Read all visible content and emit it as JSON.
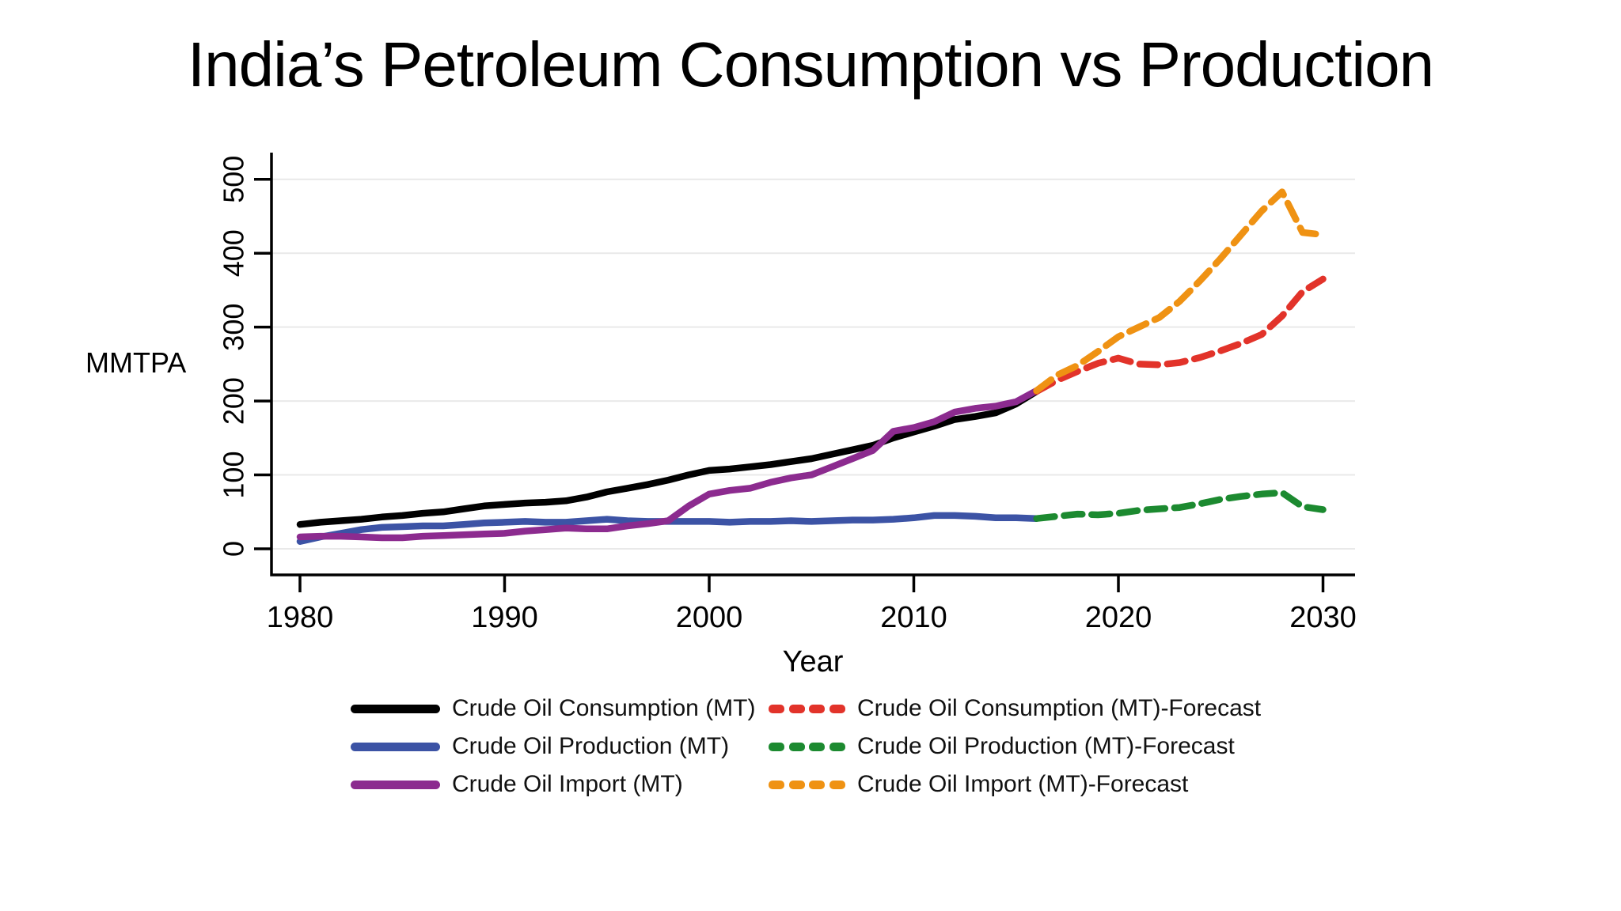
{
  "title": "India’s Petroleum Consumption vs Production",
  "chart_data": {
    "type": "line",
    "title": "India’s Petroleum Consumption vs Production",
    "xlabel": "Year",
    "ylabel": "MMTPA",
    "x_ticks": [
      "1980",
      "1990",
      "2000",
      "2010",
      "2020",
      "2030"
    ],
    "y_ticks": [
      "0",
      "100",
      "200",
      "300",
      "400",
      "500"
    ],
    "xlim": [
      1978.6,
      2031.5
    ],
    "ylim": [
      -35,
      535
    ],
    "grid": "horizontal-only",
    "grid_color": "#e9e9e9",
    "axis_color": "#000000",
    "legend_position": "bottom",
    "series": [
      {
        "name": "Crude Oil Consumption (MT)",
        "color": "#000000",
        "style": "solid",
        "x": [
          1980,
          1981,
          1982,
          1983,
          1984,
          1985,
          1986,
          1987,
          1988,
          1989,
          1990,
          1991,
          1992,
          1993,
          1994,
          1995,
          1996,
          1997,
          1998,
          1999,
          2000,
          2001,
          2002,
          2003,
          2004,
          2005,
          2006,
          2007,
          2008,
          2009,
          2010,
          2011,
          2012,
          2013,
          2014,
          2015,
          2016
        ],
        "values": [
          33,
          36,
          38,
          40,
          43,
          45,
          48,
          50,
          54,
          58,
          60,
          62,
          63,
          65,
          70,
          77,
          82,
          87,
          93,
          100,
          106,
          108,
          111,
          114,
          118,
          122,
          128,
          134,
          140,
          150,
          158,
          166,
          175,
          179,
          184,
          196,
          213
        ]
      },
      {
        "name": "Crude Oil Production (MT)",
        "color": "#3c53a5",
        "style": "solid",
        "x": [
          1980,
          1981,
          1982,
          1983,
          1984,
          1985,
          1986,
          1987,
          1988,
          1989,
          1990,
          1991,
          1992,
          1993,
          1994,
          1995,
          1996,
          1997,
          1998,
          1999,
          2000,
          2001,
          2002,
          2003,
          2004,
          2005,
          2006,
          2007,
          2008,
          2009,
          2010,
          2011,
          2012,
          2013,
          2014,
          2015,
          2016
        ],
        "values": [
          10,
          16,
          21,
          26,
          29,
          30,
          31,
          31,
          33,
          35,
          36,
          37,
          36,
          36,
          38,
          40,
          38,
          37,
          37,
          37,
          37,
          36,
          37,
          37,
          38,
          37,
          38,
          39,
          39,
          40,
          42,
          45,
          45,
          44,
          42,
          42,
          41
        ]
      },
      {
        "name": "Crude Oil Import (MT)",
        "color": "#8c2b8f",
        "style": "solid",
        "x": [
          1980,
          1981,
          1982,
          1983,
          1984,
          1985,
          1986,
          1987,
          1988,
          1989,
          1990,
          1991,
          1992,
          1993,
          1994,
          1995,
          1996,
          1997,
          1998,
          1999,
          2000,
          2001,
          2002,
          2003,
          2004,
          2005,
          2006,
          2007,
          2008,
          2009,
          2010,
          2011,
          2012,
          2013,
          2014,
          2015,
          2016
        ],
        "values": [
          16,
          17,
          17,
          16,
          15,
          15,
          17,
          18,
          19,
          20,
          21,
          24,
          26,
          28,
          27,
          27,
          31,
          34,
          38,
          58,
          74,
          79,
          82,
          90,
          96,
          100,
          111,
          122,
          133,
          159,
          164,
          172,
          185,
          190,
          193,
          199,
          214
        ]
      },
      {
        "name": "Crude Oil Consumption (MT)-Forecast",
        "color": "#e2332a",
        "style": "dashed",
        "x": [
          2016,
          2017,
          2018,
          2019,
          2020,
          2021,
          2022,
          2023,
          2024,
          2025,
          2026,
          2027,
          2028,
          2029,
          2030
        ],
        "values": [
          213,
          228,
          240,
          251,
          258,
          250,
          249,
          252,
          259,
          268,
          278,
          290,
          315,
          348,
          365
        ]
      },
      {
        "name": "Crude Oil Production (MT)-Forecast",
        "color": "#1c8a30",
        "style": "dashed",
        "x": [
          2016,
          2017,
          2018,
          2019,
          2020,
          2021,
          2022,
          2023,
          2024,
          2025,
          2026,
          2027,
          2028,
          2029,
          2030
        ],
        "values": [
          41,
          44,
          47,
          46,
          48,
          52,
          54,
          56,
          61,
          67,
          71,
          74,
          76,
          57,
          53
        ]
      },
      {
        "name": "Crude Oil Import (MT)-Forecast",
        "color": "#ef9213",
        "style": "dashed",
        "x": [
          2016,
          2017,
          2018,
          2019,
          2020,
          2021,
          2022,
          2023,
          2024,
          2025,
          2026,
          2027,
          2028,
          2029,
          2030
        ],
        "values": [
          214,
          235,
          248,
          267,
          287,
          300,
          313,
          335,
          363,
          393,
          425,
          457,
          483,
          428,
          425
        ]
      }
    ],
    "legend_rows": [
      {
        "left": 0,
        "right": 3
      },
      {
        "left": 1,
        "right": 4
      },
      {
        "left": 2,
        "right": 5
      }
    ]
  }
}
